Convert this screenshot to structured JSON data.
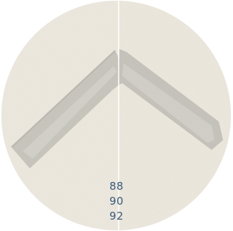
{
  "colors": {
    "paper_left": "#ece8de",
    "paper_right": "#ebe7dc",
    "stroke_dark": "#bfbdb4",
    "stroke_light": "#d2d0c8",
    "readout_text": "#3b5a7a"
  },
  "readout": {
    "values": [
      "88",
      "90",
      "92"
    ]
  }
}
